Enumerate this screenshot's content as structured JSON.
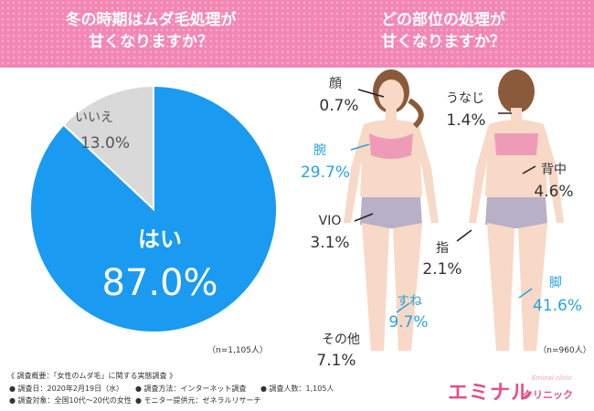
{
  "header": {
    "left_title_line1": "冬の時期はムダ毛処理が",
    "left_title_line2": "甘くなりますか？",
    "right_title_line1": "どの部位の処理が",
    "right_title_line2": "甘くなりますか？"
  },
  "chart_data": [
    {
      "type": "pie",
      "title": "冬の時期はムダ毛処理が甘くなりますか？",
      "categories": [
        "はい",
        "いいえ"
      ],
      "values": [
        87.0,
        13.0
      ],
      "labels": [
        "87.0%",
        "13.0%"
      ],
      "colors": [
        "#1a9af0",
        "#d9d9d9"
      ],
      "note": "（n=1,105人）"
    },
    {
      "type": "bar",
      "title": "どの部位の処理が甘くなりますか？",
      "categories": [
        "顔",
        "腕",
        "VIO",
        "その他",
        "うなじ",
        "背中",
        "指",
        "すね",
        "脚"
      ],
      "values": [
        0.7,
        29.7,
        3.1,
        7.1,
        1.4,
        4.6,
        2.1,
        9.7,
        41.6
      ],
      "labels": [
        "0.7%",
        "29.7%",
        "3.1%",
        "7.1%",
        "1.4%",
        "4.6%",
        "2.1%",
        "9.7%",
        "41.6%"
      ],
      "highlight_color": "#29a3dc",
      "default_color": "#333333",
      "note": "（n=960人）"
    }
  ],
  "footer": {
    "line1": "《 調査概要：「女性のムダ毛」に関する実態調査 》",
    "date": "● 調査日：2020年2月19日（水）",
    "method": "● 調査方法：インターネット調査",
    "count": "● 調査人数：1,105人",
    "target": "● 調査対象：全国10代〜20代の女性",
    "provider": "● モニター提供元：ゼネラルリサーチ"
  },
  "logo": {
    "main": "エミナル",
    "sub": "クリニック",
    "small": "Eminal clinic"
  }
}
